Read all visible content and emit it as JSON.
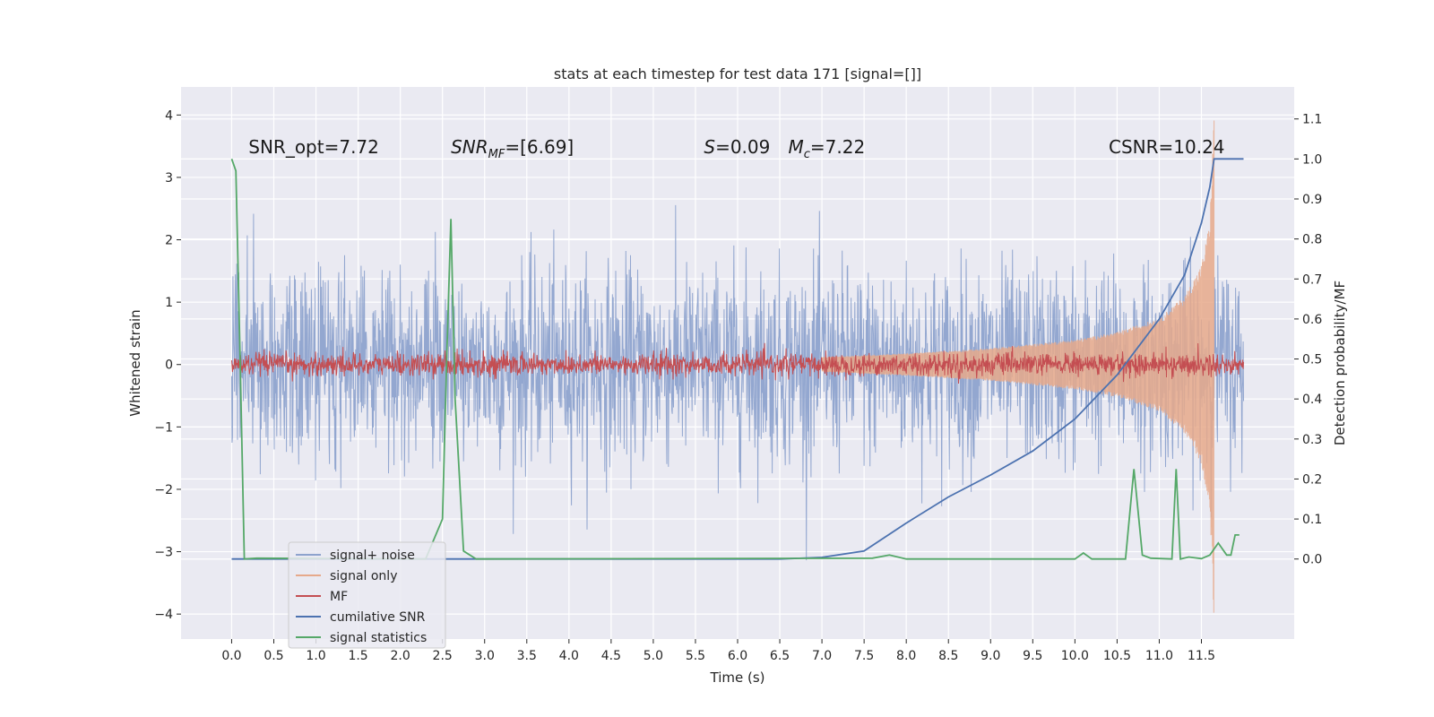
{
  "chart_data": {
    "type": "line",
    "title": "stats at each timestep for test data 171 [signal=[]]",
    "xlabel": "Time (s)",
    "ylabel": "Whitened strain",
    "ylabel_right": "Detection probability/MF",
    "xlim": [
      -0.6,
      12.6
    ],
    "ylim": [
      -4.4,
      4.45
    ],
    "ylim_right": [
      -0.2,
      1.18
    ],
    "x_ticks": [
      0.0,
      0.5,
      1.0,
      1.5,
      2.0,
      2.5,
      3.0,
      3.5,
      4.0,
      4.5,
      5.0,
      5.5,
      6.0,
      6.5,
      7.0,
      7.5,
      8.0,
      8.5,
      9.0,
      9.5,
      10.0,
      10.5,
      11.0,
      11.5
    ],
    "x_tick_labels": [
      "0.0",
      "0.5",
      "1.0",
      "1.5",
      "2.0",
      "2.5",
      "3.0",
      "3.5",
      "4.0",
      "4.5",
      "5.0",
      "5.5",
      "6.0",
      "6.5",
      "7.0",
      "7.5",
      "8.0",
      "8.5",
      "9.0",
      "9.5",
      "10.0",
      "10.5",
      "11.0",
      "11.5"
    ],
    "y_ticks": [
      4,
      3,
      2,
      1,
      0,
      -1,
      -2,
      -3,
      -4
    ],
    "y_tick_labels": [
      "4",
      "3",
      "2",
      "1",
      "0",
      "−1",
      "−2",
      "−3",
      "−4"
    ],
    "y_ticks_right": [
      1.1,
      1.0,
      0.9,
      0.8,
      0.7,
      0.6,
      0.5,
      0.4,
      0.3,
      0.2,
      0.1,
      0.0
    ],
    "y_tick_labels_right": [
      "1.1",
      "1.0",
      "0.9",
      "0.8",
      "0.7",
      "0.6",
      "0.5",
      "0.4",
      "0.3",
      "0.2",
      "0.1",
      "0.0"
    ],
    "grid": true,
    "legend_position": "bottom-left",
    "annotations": [
      {
        "text": "SNR_opt=7.72",
        "x": 0.2,
        "y": 3.3
      },
      {
        "text": "SNR_MF=[6.69]",
        "x": 2.6,
        "y": 3.3
      },
      {
        "text": "S=0.09",
        "x": 5.6,
        "y": 3.3
      },
      {
        "text": "M_c=7.22",
        "x": 6.6,
        "y": 3.3
      },
      {
        "text": "CSNR=10.24",
        "x": 10.4,
        "y": 3.3
      }
    ],
    "series": [
      {
        "name": "signal+ noise",
        "color": "#8ea3cd",
        "axis": "left",
        "kind": "noise_band",
        "approx_range": [
          -2.0,
          2.0
        ],
        "x_range": [
          0.0,
          12.0
        ]
      },
      {
        "name": "signal only",
        "color": "#e6a98b",
        "axis": "left",
        "kind": "chirp_envelope",
        "x": [
          7.0,
          8.0,
          9.0,
          10.0,
          10.5,
          11.0,
          11.3,
          11.5,
          11.6,
          11.65
        ],
        "amplitude": [
          0.12,
          0.18,
          0.26,
          0.4,
          0.52,
          0.75,
          1.1,
          1.6,
          2.3,
          4.1
        ]
      },
      {
        "name": "MF",
        "color": "#c44e52",
        "axis": "left",
        "kind": "noise_band",
        "approx_range": [
          -0.22,
          0.22
        ],
        "x_range": [
          0.0,
          12.0
        ]
      },
      {
        "name": "cumilative SNR",
        "color": "#4c72b0",
        "axis": "right",
        "x": [
          0.0,
          6.5,
          7.0,
          7.5,
          8.0,
          8.5,
          9.0,
          9.5,
          10.0,
          10.5,
          11.0,
          11.3,
          11.5,
          11.6,
          11.65,
          12.0
        ],
        "values": [
          0.0,
          0.0,
          0.004,
          0.02,
          0.09,
          0.155,
          0.21,
          0.27,
          0.35,
          0.46,
          0.6,
          0.71,
          0.84,
          0.93,
          1.0,
          1.0
        ]
      },
      {
        "name": "signal statistics",
        "color": "#55a868",
        "axis": "right",
        "x": [
          0.0,
          0.05,
          0.1,
          0.15,
          0.3,
          2.3,
          2.5,
          2.55,
          2.6,
          2.65,
          2.75,
          2.9,
          7.6,
          7.8,
          8.0,
          10.0,
          10.1,
          10.2,
          10.6,
          10.7,
          10.8,
          10.9,
          11.15,
          11.2,
          11.25,
          11.35,
          11.5,
          11.6,
          11.7,
          11.8,
          11.85,
          11.9,
          11.95
        ],
        "values": [
          1.0,
          0.97,
          0.5,
          0.0,
          0.002,
          0.0,
          0.1,
          0.5,
          0.85,
          0.4,
          0.02,
          0.0,
          0.002,
          0.01,
          0.0,
          0.0,
          0.015,
          0.0,
          0.0,
          0.225,
          0.01,
          0.002,
          0.0,
          0.225,
          0.0,
          0.005,
          0.001,
          0.01,
          0.04,
          0.01,
          0.01,
          0.06,
          0.06
        ]
      }
    ]
  }
}
